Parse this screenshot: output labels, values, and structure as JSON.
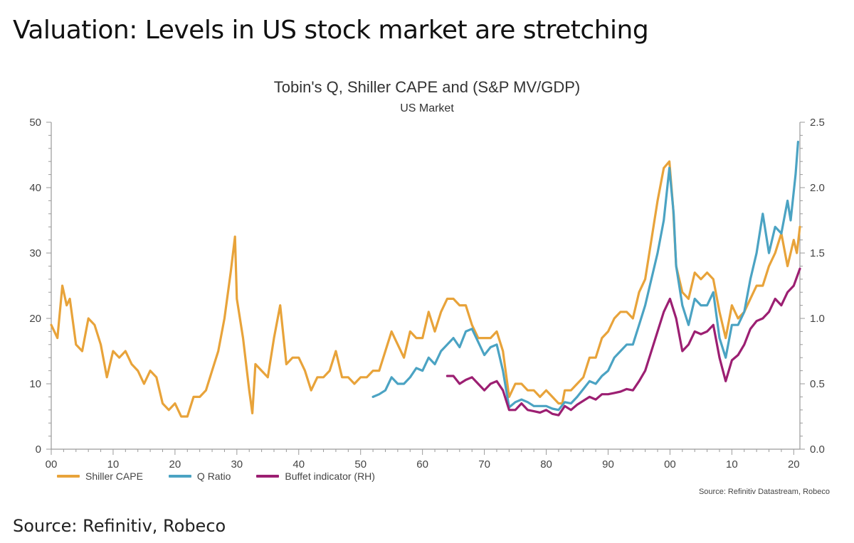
{
  "slide": {
    "title": "Valuation: Levels in US stock market are stretching",
    "source": "Source: Refinitiv, Robeco"
  },
  "colors": {
    "cape": "#E8A33A",
    "q_ratio": "#4BA3C3",
    "buffet": "#9C1F72",
    "axis": "#9a9a9a"
  },
  "chart_data": {
    "type": "line",
    "title": "Tobin's Q, Shiller CAPE and (S&P MV/GDP)",
    "subtitle": "US Market",
    "source_note": "Source: Refinitiv Datastream, Robeco",
    "x_ticks": [
      "00",
      "10",
      "20",
      "30",
      "40",
      "50",
      "60",
      "70",
      "80",
      "90",
      "00",
      "10",
      "20"
    ],
    "xlim": [
      1900,
      2021
    ],
    "ylim_left": [
      0,
      50
    ],
    "ylim_right": [
      0,
      2.5
    ],
    "y_ticks_left": [
      "0",
      "10",
      "20",
      "30",
      "40",
      "50"
    ],
    "y_ticks_right": [
      "0.0",
      "0.5",
      "1.0",
      "1.5",
      "2.0",
      "2.5"
    ],
    "legend_position": "bottom-left",
    "series": [
      {
        "name": "Shiller CAPE",
        "axis": "left",
        "x": [
          1900,
          1901,
          1901.8,
          1902.5,
          1903,
          1904,
          1905,
          1906,
          1907,
          1908,
          1909,
          1910,
          1911,
          1912,
          1913,
          1914,
          1915,
          1916,
          1917,
          1918,
          1919,
          1920,
          1921,
          1922,
          1923,
          1924,
          1925,
          1926,
          1927,
          1928,
          1929,
          1929.7,
          1930,
          1931,
          1932,
          1932.5,
          1933,
          1934,
          1935,
          1936,
          1937,
          1938,
          1939,
          1940,
          1941,
          1942,
          1943,
          1944,
          1945,
          1946,
          1947,
          1948,
          1949,
          1950,
          1951,
          1952,
          1953,
          1954,
          1955,
          1956,
          1957,
          1958,
          1959,
          1960,
          1961,
          1962,
          1963,
          1964,
          1965,
          1966,
          1967,
          1968,
          1969,
          1970,
          1971,
          1972,
          1973,
          1974,
          1975,
          1976,
          1977,
          1978,
          1979,
          1980,
          1981,
          1982,
          1982.6,
          1983,
          1984,
          1985,
          1986,
          1987,
          1988,
          1989,
          1990,
          1991,
          1992,
          1993,
          1994,
          1995,
          1996,
          1997,
          1998,
          1999,
          1999.9,
          2000.5,
          2001,
          2002,
          2003,
          2004,
          2005,
          2006,
          2007,
          2008,
          2009,
          2010,
          2011,
          2012,
          2013,
          2014,
          2015,
          2016,
          2017,
          2018,
          2019,
          2020,
          2020.5,
          2021
        ],
        "values": [
          19,
          17,
          25,
          22,
          23,
          16,
          15,
          20,
          19,
          16,
          11,
          15,
          14,
          15,
          13,
          12,
          10,
          12,
          11,
          7,
          6,
          7,
          5,
          5,
          8,
          8,
          9,
          12,
          15,
          20,
          27,
          32.5,
          23,
          17,
          9,
          5.5,
          13,
          12,
          11,
          17,
          22,
          13,
          14,
          14,
          12,
          9,
          11,
          11,
          12,
          15,
          11,
          11,
          10,
          11,
          11,
          12,
          12,
          15,
          18,
          16,
          14,
          18,
          17,
          17,
          21,
          18,
          21,
          23,
          23,
          22,
          22,
          19,
          17,
          17,
          17,
          18,
          15,
          8,
          10,
          10,
          9,
          9,
          8,
          9,
          8,
          7,
          7,
          9,
          9,
          10,
          11,
          14,
          14,
          17,
          18,
          20,
          21,
          21,
          20,
          24,
          26,
          32,
          38,
          43,
          44,
          37,
          28,
          24,
          23,
          27,
          26,
          27,
          26,
          21,
          17,
          22,
          20,
          21,
          23,
          25,
          25,
          28,
          30,
          33,
          28,
          32,
          30,
          34
        ]
      },
      {
        "name": "Q Ratio",
        "axis": "right",
        "x": [
          1952,
          1953,
          1954,
          1955,
          1956,
          1957,
          1958,
          1959,
          1960,
          1961,
          1962,
          1963,
          1964,
          1965,
          1966,
          1967,
          1968,
          1969,
          1970,
          1971,
          1972,
          1973,
          1974,
          1975,
          1976,
          1977,
          1978,
          1979,
          1980,
          1981,
          1982,
          1983,
          1984,
          1985,
          1986,
          1987,
          1988,
          1989,
          1990,
          1991,
          1992,
          1993,
          1994,
          1995,
          1996,
          1997,
          1998,
          1999,
          1999.9,
          2000.6,
          2001,
          2002,
          2003,
          2004,
          2005,
          2006,
          2007,
          2008,
          2009,
          2010,
          2011,
          2012,
          2013,
          2014,
          2015,
          2016,
          2017,
          2018,
          2019,
          2019.5,
          2020.3,
          2020.7
        ],
        "values": [
          0.4,
          0.42,
          0.45,
          0.55,
          0.5,
          0.5,
          0.55,
          0.62,
          0.6,
          0.7,
          0.65,
          0.75,
          0.8,
          0.85,
          0.78,
          0.9,
          0.92,
          0.82,
          0.72,
          0.78,
          0.8,
          0.6,
          0.32,
          0.36,
          0.38,
          0.36,
          0.33,
          0.33,
          0.33,
          0.31,
          0.3,
          0.36,
          0.35,
          0.4,
          0.46,
          0.52,
          0.5,
          0.56,
          0.6,
          0.7,
          0.75,
          0.8,
          0.8,
          0.95,
          1.1,
          1.3,
          1.5,
          1.75,
          2.15,
          1.8,
          1.4,
          1.1,
          0.95,
          1.15,
          1.1,
          1.1,
          1.2,
          0.85,
          0.7,
          0.95,
          0.95,
          1.05,
          1.3,
          1.5,
          1.8,
          1.5,
          1.7,
          1.65,
          1.9,
          1.75,
          2.1,
          2.35
        ]
      },
      {
        "name": "Buffet indicator (RH)",
        "axis": "right",
        "x": [
          1964,
          1965,
          1966,
          1967,
          1968,
          1969,
          1970,
          1971,
          1972,
          1973,
          1974,
          1975,
          1976,
          1977,
          1978,
          1979,
          1980,
          1981,
          1982,
          1983,
          1984,
          1985,
          1986,
          1987,
          1988,
          1989,
          1990,
          1991,
          1992,
          1993,
          1994,
          1995,
          1996,
          1997,
          1998,
          1999,
          2000,
          2001,
          2002,
          2003,
          2004,
          2005,
          2006,
          2007,
          2008,
          2009,
          2010,
          2011,
          2012,
          2013,
          2014,
          2015,
          2016,
          2017,
          2018,
          2019,
          2020,
          2021
        ],
        "values": [
          0.56,
          0.56,
          0.5,
          0.53,
          0.55,
          0.5,
          0.45,
          0.5,
          0.52,
          0.45,
          0.3,
          0.3,
          0.35,
          0.3,
          0.29,
          0.28,
          0.3,
          0.27,
          0.26,
          0.33,
          0.3,
          0.34,
          0.37,
          0.4,
          0.38,
          0.42,
          0.42,
          0.43,
          0.44,
          0.46,
          0.45,
          0.52,
          0.6,
          0.75,
          0.9,
          1.05,
          1.15,
          1.0,
          0.75,
          0.8,
          0.9,
          0.88,
          0.9,
          0.95,
          0.7,
          0.52,
          0.68,
          0.72,
          0.8,
          0.92,
          0.98,
          1.0,
          1.05,
          1.15,
          1.1,
          1.2,
          1.25,
          1.38
        ]
      }
    ]
  }
}
